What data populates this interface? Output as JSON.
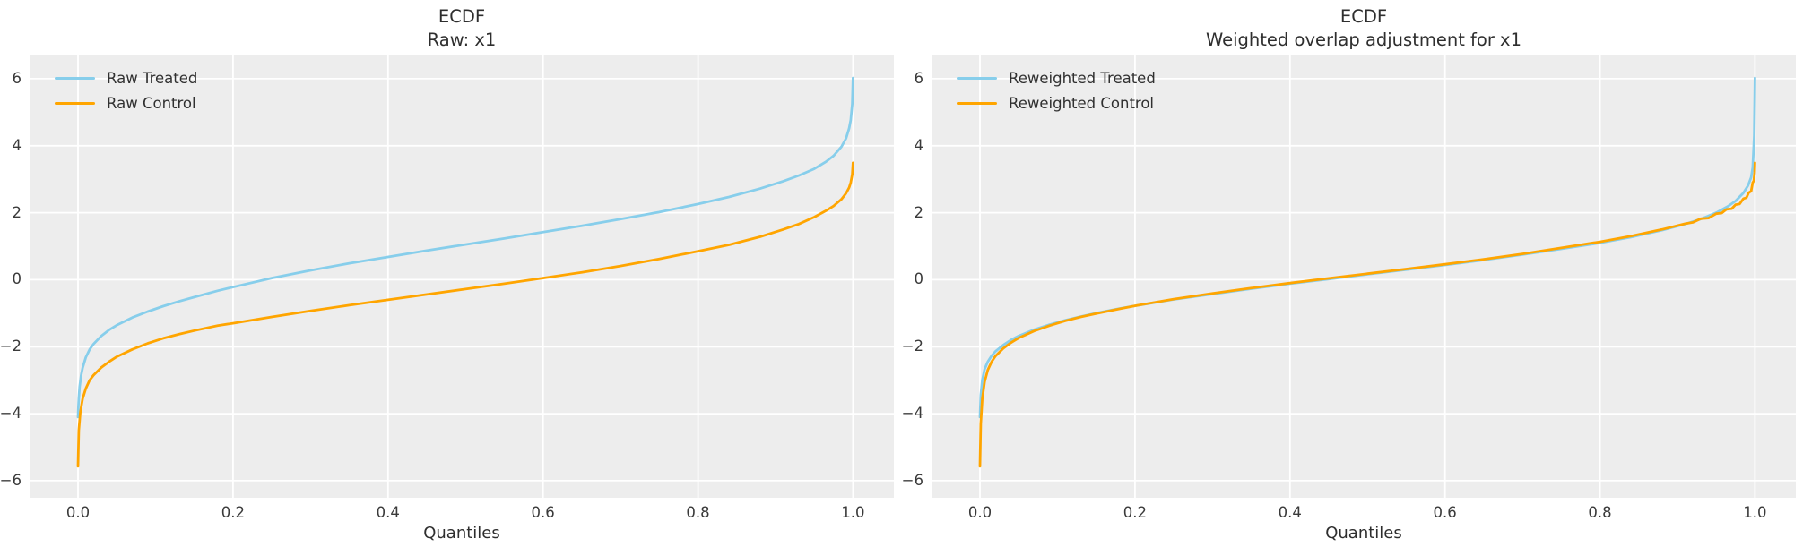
{
  "figure": {
    "background": "#ffffff",
    "plot_background": "#ededed",
    "grid_color": "#ffffff",
    "treated_color": "#87CEEB",
    "control_color": "#FFA500"
  },
  "chart_data": [
    {
      "type": "line",
      "title_lines": [
        "ECDF",
        "Raw: x1"
      ],
      "xlabel": "Quantiles",
      "ylabel": "",
      "xlim": [
        -0.0625,
        1.0527
      ],
      "ylim": [
        -6.51,
        6.72
      ],
      "grid": true,
      "legend_position": "upper-left",
      "xticks": {
        "values": [
          0,
          0.2,
          0.4,
          0.6,
          0.8,
          1.0
        ],
        "labels": [
          "0.0",
          "0.2",
          "0.4",
          "0.6",
          "0.8",
          "1.0"
        ]
      },
      "yticks": {
        "values": [
          6,
          4,
          2,
          0,
          -2,
          -4,
          -6
        ],
        "labels": [
          "6",
          "4",
          "2",
          "0",
          "−2",
          "−4",
          "−6"
        ]
      },
      "series": [
        {
          "name": "Raw Treated",
          "color": "#87CEEB",
          "points": [
            [
              0,
              -4.1
            ],
            [
              0.0005,
              -3.75
            ],
            [
              0.001,
              -3.55
            ],
            [
              0.002,
              -3.2
            ],
            [
              0.004,
              -2.85
            ],
            [
              0.006,
              -2.63
            ],
            [
              0.01,
              -2.32
            ],
            [
              0.015,
              -2.08
            ],
            [
              0.02,
              -1.92
            ],
            [
              0.03,
              -1.68
            ],
            [
              0.04,
              -1.5
            ],
            [
              0.05,
              -1.36
            ],
            [
              0.07,
              -1.13
            ],
            [
              0.09,
              -0.95
            ],
            [
              0.11,
              -0.79
            ],
            [
              0.13,
              -0.65
            ],
            [
              0.15,
              -0.52
            ],
            [
              0.18,
              -0.33
            ],
            [
              0.2,
              -0.22
            ],
            [
              0.25,
              0.05
            ],
            [
              0.3,
              0.28
            ],
            [
              0.35,
              0.49
            ],
            [
              0.4,
              0.68
            ],
            [
              0.45,
              0.87
            ],
            [
              0.5,
              1.05
            ],
            [
              0.55,
              1.23
            ],
            [
              0.6,
              1.42
            ],
            [
              0.65,
              1.61
            ],
            [
              0.7,
              1.81
            ],
            [
              0.75,
              2.02
            ],
            [
              0.8,
              2.26
            ],
            [
              0.84,
              2.47
            ],
            [
              0.88,
              2.72
            ],
            [
              0.91,
              2.94
            ],
            [
              0.93,
              3.11
            ],
            [
              0.95,
              3.31
            ],
            [
              0.965,
              3.52
            ],
            [
              0.975,
              3.7
            ],
            [
              0.985,
              3.97
            ],
            [
              0.991,
              4.22
            ],
            [
              0.995,
              4.52
            ],
            [
              0.997,
              4.77
            ],
            [
              0.999,
              5.25
            ],
            [
              1,
              6.02
            ]
          ]
        },
        {
          "name": "Raw Control",
          "color": "#FFA500",
          "points": [
            [
              0,
              -5.57
            ],
            [
              0.001,
              -4.5
            ],
            [
              0.003,
              -3.95
            ],
            [
              0.006,
              -3.55
            ],
            [
              0.01,
              -3.25
            ],
            [
              0.015,
              -3.0
            ],
            [
              0.02,
              -2.85
            ],
            [
              0.03,
              -2.62
            ],
            [
              0.04,
              -2.45
            ],
            [
              0.05,
              -2.3
            ],
            [
              0.07,
              -2.08
            ],
            [
              0.09,
              -1.9
            ],
            [
              0.11,
              -1.75
            ],
            [
              0.13,
              -1.63
            ],
            [
              0.15,
              -1.52
            ],
            [
              0.18,
              -1.37
            ],
            [
              0.2,
              -1.3
            ],
            [
              0.25,
              -1.11
            ],
            [
              0.3,
              -0.93
            ],
            [
              0.35,
              -0.76
            ],
            [
              0.4,
              -0.6
            ],
            [
              0.45,
              -0.44
            ],
            [
              0.5,
              -0.28
            ],
            [
              0.55,
              -0.12
            ],
            [
              0.6,
              0.05
            ],
            [
              0.65,
              0.22
            ],
            [
              0.7,
              0.41
            ],
            [
              0.75,
              0.62
            ],
            [
              0.8,
              0.85
            ],
            [
              0.84,
              1.04
            ],
            [
              0.88,
              1.28
            ],
            [
              0.91,
              1.5
            ],
            [
              0.93,
              1.66
            ],
            [
              0.95,
              1.87
            ],
            [
              0.965,
              2.06
            ],
            [
              0.975,
              2.2
            ],
            [
              0.985,
              2.4
            ],
            [
              0.991,
              2.58
            ],
            [
              0.995,
              2.75
            ],
            [
              0.997,
              2.9
            ],
            [
              0.999,
              3.15
            ],
            [
              1,
              3.49
            ]
          ]
        }
      ]
    },
    {
      "type": "line",
      "title_lines": [
        "ECDF",
        "Weighted overlap adjustment for x1"
      ],
      "xlabel": "Quantiles",
      "ylabel": "",
      "xlim": [
        -0.0625,
        1.0527
      ],
      "ylim": [
        -6.51,
        6.72
      ],
      "grid": true,
      "legend_position": "upper-left",
      "xticks": {
        "values": [
          0,
          0.2,
          0.4,
          0.6,
          0.8,
          1.0
        ],
        "labels": [
          "0.0",
          "0.2",
          "0.4",
          "0.6",
          "0.8",
          "1.0"
        ]
      },
      "yticks": {
        "values": [
          6,
          4,
          2,
          0,
          -2,
          -4,
          -6
        ],
        "labels": [
          "6",
          "4",
          "2",
          "0",
          "−2",
          "−4",
          "−6"
        ]
      },
      "series": [
        {
          "name": "Reweighted Treated",
          "color": "#87CEEB",
          "points": [
            [
              0,
              -4.1
            ],
            [
              0.001,
              -3.45
            ],
            [
              0.003,
              -3.0
            ],
            [
              0.006,
              -2.67
            ],
            [
              0.01,
              -2.45
            ],
            [
              0.015,
              -2.27
            ],
            [
              0.02,
              -2.14
            ],
            [
              0.03,
              -1.95
            ],
            [
              0.04,
              -1.8
            ],
            [
              0.05,
              -1.68
            ],
            [
              0.07,
              -1.49
            ],
            [
              0.09,
              -1.34
            ],
            [
              0.11,
              -1.21
            ],
            [
              0.13,
              -1.1
            ],
            [
              0.15,
              -1.0
            ],
            [
              0.18,
              -0.86
            ],
            [
              0.2,
              -0.78
            ],
            [
              0.25,
              -0.59
            ],
            [
              0.3,
              -0.43
            ],
            [
              0.35,
              -0.27
            ],
            [
              0.4,
              -0.12
            ],
            [
              0.45,
              0.02
            ],
            [
              0.5,
              0.16
            ],
            [
              0.55,
              0.3
            ],
            [
              0.6,
              0.44
            ],
            [
              0.65,
              0.59
            ],
            [
              0.7,
              0.75
            ],
            [
              0.75,
              0.92
            ],
            [
              0.8,
              1.1
            ],
            [
              0.84,
              1.27
            ],
            [
              0.88,
              1.48
            ],
            [
              0.91,
              1.66
            ],
            [
              0.93,
              1.81
            ],
            [
              0.95,
              2.0
            ],
            [
              0.965,
              2.19
            ],
            [
              0.975,
              2.35
            ],
            [
              0.985,
              2.59
            ],
            [
              0.991,
              2.81
            ],
            [
              0.995,
              3.05
            ],
            [
              0.997,
              3.35
            ],
            [
              0.999,
              4.3
            ],
            [
              1,
              6.02
            ]
          ]
        },
        {
          "name": "Reweighted Control",
          "color": "#FFA500",
          "points": [
            [
              0,
              -5.57
            ],
            [
              0.001,
              -4.3
            ],
            [
              0.003,
              -3.55
            ],
            [
              0.006,
              -3.05
            ],
            [
              0.01,
              -2.7
            ],
            [
              0.015,
              -2.45
            ],
            [
              0.02,
              -2.28
            ],
            [
              0.03,
              -2.05
            ],
            [
              0.04,
              -1.88
            ],
            [
              0.05,
              -1.74
            ],
            [
              0.07,
              -1.53
            ],
            [
              0.09,
              -1.37
            ],
            [
              0.11,
              -1.23
            ],
            [
              0.13,
              -1.11
            ],
            [
              0.15,
              -1.01
            ],
            [
              0.18,
              -0.87
            ],
            [
              0.2,
              -0.78
            ],
            [
              0.25,
              -0.58
            ],
            [
              0.3,
              -0.41
            ],
            [
              0.35,
              -0.25
            ],
            [
              0.4,
              -0.1
            ],
            [
              0.45,
              0.04
            ],
            [
              0.5,
              0.18
            ],
            [
              0.55,
              0.32
            ],
            [
              0.6,
              0.46
            ],
            [
              0.65,
              0.61
            ],
            [
              0.7,
              0.77
            ],
            [
              0.75,
              0.95
            ],
            [
              0.8,
              1.13
            ],
            [
              0.84,
              1.3
            ],
            [
              0.88,
              1.5
            ],
            [
              0.91,
              1.67
            ],
            [
              0.92,
              1.71
            ],
            [
              0.93,
              1.82
            ],
            [
              0.94,
              1.84
            ],
            [
              0.95,
              1.97
            ],
            [
              0.957,
              1.99
            ],
            [
              0.963,
              2.1
            ],
            [
              0.97,
              2.12
            ],
            [
              0.975,
              2.24
            ],
            [
              0.98,
              2.26
            ],
            [
              0.985,
              2.42
            ],
            [
              0.989,
              2.45
            ],
            [
              0.992,
              2.6
            ],
            [
              0.995,
              2.64
            ],
            [
              0.997,
              2.9
            ],
            [
              0.9985,
              2.95
            ],
            [
              0.9995,
              3.2
            ],
            [
              1,
              3.49
            ]
          ]
        }
      ]
    }
  ]
}
